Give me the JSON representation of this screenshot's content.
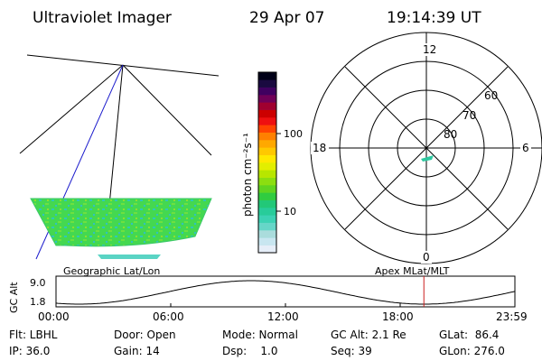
{
  "header": {
    "title": "Ultraviolet Imager",
    "date": "29 Apr 07",
    "time": "19:14:39 UT"
  },
  "colorbar": {
    "label": "photon cm⁻²s⁻¹",
    "tick_100": "100",
    "tick_10": "10",
    "colors": [
      "#e6eef8",
      "#c8e6f0",
      "#aadcdc",
      "#66d6c8",
      "#3cd2b4",
      "#28cc9a",
      "#22c878",
      "#30cc40",
      "#60d420",
      "#8cde10",
      "#b8e600",
      "#e2ee00",
      "#ffe800",
      "#ffc800",
      "#ffa800",
      "#ff8000",
      "#ff4400",
      "#ee1010",
      "#cc0000",
      "#a00030",
      "#700058",
      "#400060",
      "#1a0a40",
      "#000018"
    ]
  },
  "left_panel": {
    "label": "Geographic Lat/Lon"
  },
  "polar": {
    "label": "Apex MLat/MLT",
    "mlt_12": "12",
    "mlt_18": "18",
    "mlt_6": "6",
    "mlt_0": "0",
    "lat_60": "60",
    "lat_70": "70",
    "lat_80": "80"
  },
  "altitude_plot": {
    "ylabel": "GC Alt",
    "y_top": "9.0",
    "y_bottom": "1.8",
    "x_ticks": [
      "00:00",
      "06:00",
      "12:00",
      "18:00",
      "23:59"
    ],
    "current_marker_hour": 19.24
  },
  "info": {
    "flt": "Flt: LBHL",
    "ip": "IP: 36.0",
    "door": "Door: Open",
    "gain": "Gain: 14",
    "mode": "Mode: Normal",
    "dsp": "Dsp:    1.0",
    "gcalt": "GC Alt: 2.1 Re",
    "seq": "Seq: 39",
    "glat": "GLat:  86.4",
    "glon": "GLon: 276.0"
  }
}
